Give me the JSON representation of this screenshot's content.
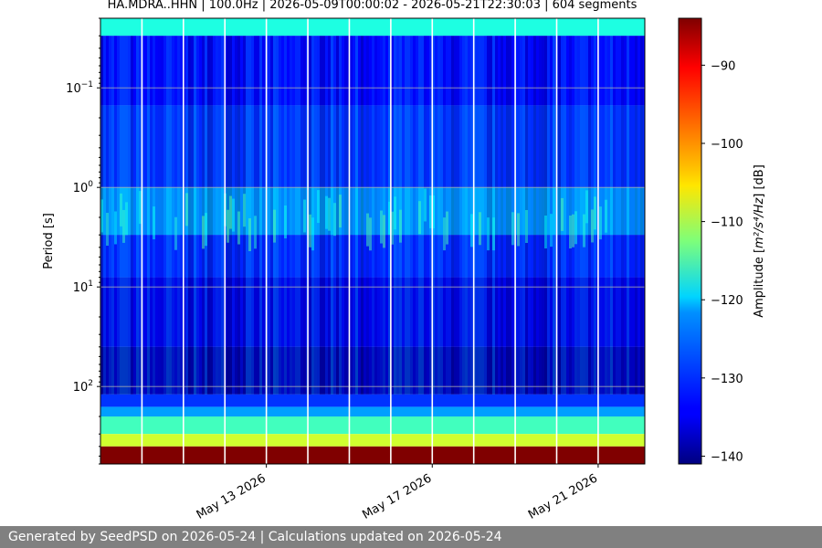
{
  "header": {
    "title": "HA.MDRA..HHN | 100.0Hz | 2026-05-09T00:00:02 - 2026-05-21T22:30:03 | 604 segments"
  },
  "footer": {
    "text": "Generated by SeedPSD on 2026-05-24 | Calculations updated on 2026-05-24",
    "background": "#808080"
  },
  "chart_data": {
    "type": "heatmap",
    "title": "HA.MDRA..HHN | 100.0Hz | 2026-05-09T00:00:02 - 2026-05-21T22:30:03 | 604 segments",
    "xlabel": "",
    "ylabel": "Period [s]",
    "y_scale": "log",
    "y_inverted": true,
    "ylim": [
      0.02,
      600
    ],
    "xlim": [
      "2026-05-09",
      "2026-05-22T03:00"
    ],
    "x_ticks": [
      {
        "value": "2026-05-13",
        "label": "May 13 2026"
      },
      {
        "value": "2026-05-17",
        "label": "May 17 2026"
      },
      {
        "value": "2026-05-21",
        "label": "May 21 2026"
      }
    ],
    "y_ticks": [
      {
        "value": 0.1,
        "base": "10",
        "exp": "−1"
      },
      {
        "value": 1,
        "base": "10",
        "exp": "0"
      },
      {
        "value": 10,
        "base": "10",
        "exp": "1"
      },
      {
        "value": 100,
        "base": "10",
        "exp": "2"
      }
    ],
    "grid": true,
    "colormap": "jet",
    "colorbar": {
      "label_prefix": "Amplitude [",
      "label_math": "m²/s⁴/Hz",
      "label_suffix": "] [dB]",
      "range": [
        -141,
        -84
      ],
      "ticks": [
        -90,
        -100,
        -110,
        -120,
        -130,
        -140
      ],
      "tick_labels": [
        "−90",
        "−100",
        "−110",
        "−120",
        "−130",
        "−140"
      ]
    },
    "bands": [
      {
        "period_from": 0.02,
        "period_to": 0.03,
        "level_db": -118
      },
      {
        "period_from": 0.03,
        "period_to": 0.15,
        "level_db": -134
      },
      {
        "period_from": 0.15,
        "period_to": 1.0,
        "level_db": -130
      },
      {
        "period_from": 1.0,
        "period_to": 3.0,
        "level_db": -121
      },
      {
        "period_from": 3.0,
        "period_to": 8.0,
        "level_db": -131
      },
      {
        "period_from": 8.0,
        "period_to": 40.0,
        "level_db": -136
      },
      {
        "period_from": 40.0,
        "period_to": 120.0,
        "level_db": -140
      },
      {
        "period_from": 120.0,
        "period_to": 160.0,
        "level_db": -131
      },
      {
        "period_from": 160.0,
        "period_to": 200.0,
        "level_db": -125
      },
      {
        "period_from": 200.0,
        "period_to": 300.0,
        "level_db": -116
      },
      {
        "period_from": 300.0,
        "period_to": 400.0,
        "level_db": -108
      },
      {
        "period_from": 400.0,
        "period_to": 600.0,
        "level_db": -84
      }
    ],
    "data_gaps": [
      "2026-05-10T00:00",
      "2026-05-11T00:00",
      "2026-05-12T00:00",
      "2026-05-13T00:00",
      "2026-05-14T00:00",
      "2026-05-15T00:00",
      "2026-05-16T00:00",
      "2026-05-17T00:00",
      "2026-05-18T00:00",
      "2026-05-19T00:00",
      "2026-05-20T00:00",
      "2026-05-21T00:00"
    ]
  }
}
